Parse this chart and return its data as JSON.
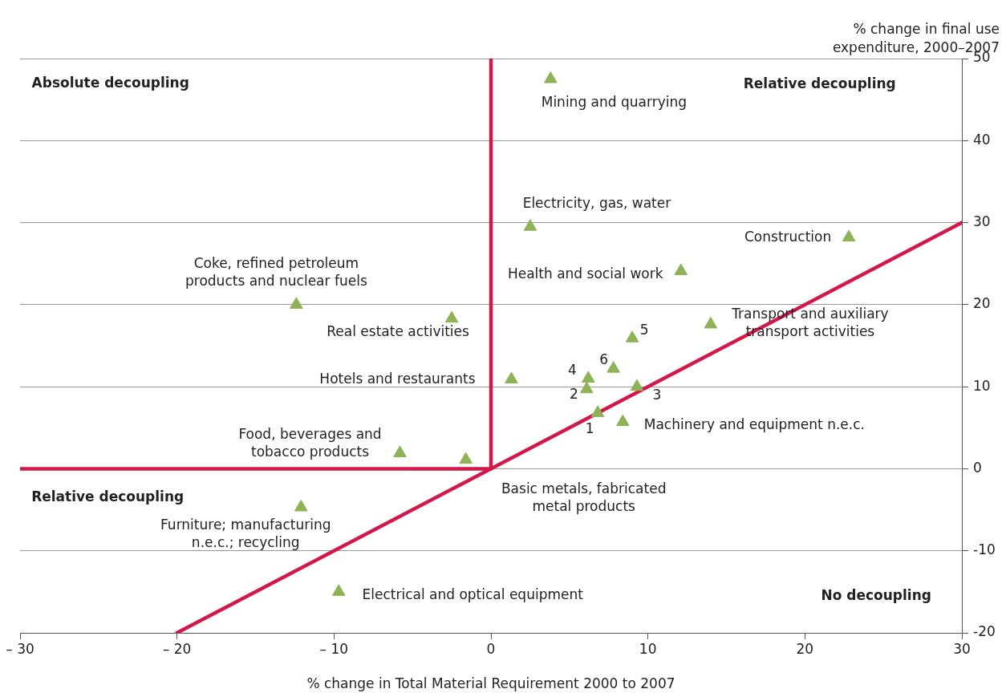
{
  "chart_data": {
    "type": "scatter",
    "xlabel": "% change in Total Material Requirement 2000 to 2007",
    "ylabel": "% change in final use expenditure, 2000–2007",
    "xlim": [
      -30,
      30
    ],
    "xticks": [
      {
        "value": -30,
        "label": "– 30"
      },
      {
        "value": -20,
        "label": "– 20"
      },
      {
        "value": -10,
        "label": "– 10"
      },
      0,
      10,
      20,
      30
    ],
    "ylim": [
      -20,
      50
    ],
    "yticks": [
      -20,
      -10,
      0,
      10,
      20,
      30,
      40,
      50
    ],
    "grid": "y",
    "series": [
      {
        "color": "#8db356",
        "marker": "triangle",
        "x": [
          3.8,
          2.5,
          22.8,
          12.1,
          -12.4,
          -2.5,
          14.0,
          9.0,
          7.8,
          6.2,
          1.3,
          6.1,
          9.3,
          6.8,
          8.4,
          -5.8,
          -1.6,
          -12.1,
          -9.7
        ],
        "values": [
          47.5,
          29.5,
          28.2,
          24.1,
          20.0,
          18.3,
          17.6,
          15.9,
          12.2,
          11.0,
          10.9,
          9.7,
          10.0,
          6.8,
          5.7,
          1.9,
          1.1,
          -4.7,
          -15.0
        ]
      },
      {
        "type": "line",
        "color": "#d4174a",
        "x": [
          0,
          0
        ],
        "values": [
          0,
          50
        ]
      },
      {
        "type": "line",
        "color": "#d4174a",
        "x": [
          -30,
          0
        ],
        "values": [
          0,
          0
        ]
      },
      {
        "type": "line",
        "color": "#d4174a",
        "x": [
          -20,
          30
        ],
        "values": [
          -20,
          30
        ]
      }
    ],
    "annotations": [
      "Absolute decoupling",
      "Relative decoupling",
      "Relative decoupling",
      "No decoupling",
      {
        "text": "Mining and quarrying",
        "x": 3.8,
        "y": 47.5
      },
      {
        "text": "Electricity, gas, water",
        "x": 2.5,
        "y": 29.5
      },
      {
        "text": "Construction",
        "x": 22.8,
        "y": 28.2
      },
      {
        "text": "Health and social work",
        "x": 12.1,
        "y": 24.1
      },
      {
        "text": "Coke, refined petroleum\nproducts and nuclear fuels",
        "x": -12.4,
        "y": 20.0
      },
      {
        "text": "Real estate activities",
        "x": -2.5,
        "y": 18.3
      },
      {
        "text": "Transport and auxiliary\ntransport activities",
        "x": 14.0,
        "y": 17.6
      },
      {
        "text": "5",
        "x": 9.0,
        "y": 15.9
      },
      {
        "text": "6",
        "x": 7.8,
        "y": 12.2
      },
      {
        "text": "4",
        "x": 6.2,
        "y": 11.0
      },
      {
        "text": "Hotels and restaurants",
        "x": 1.3,
        "y": 10.9
      },
      {
        "text": "2",
        "x": 6.1,
        "y": 9.7
      },
      {
        "text": "3",
        "x": 9.3,
        "y": 10.0
      },
      {
        "text": "1",
        "x": 6.8,
        "y": 6.8
      },
      {
        "text": "Machinery and equipment n.e.c.",
        "x": 8.4,
        "y": 5.7
      },
      {
        "text": "Food, beverages and\ntobacco products",
        "x": -5.8,
        "y": 1.9
      },
      {
        "text": "Basic metals, fabricated\nmetal products",
        "x": -1.6,
        "y": 1.1
      },
      {
        "text": "Furniture; manufacturing\nn.e.c.; recycling",
        "x": -12.1,
        "y": -4.7
      },
      {
        "text": "Electrical and optical equipment",
        "x": -9.7,
        "y": -15.0
      }
    ]
  }
}
